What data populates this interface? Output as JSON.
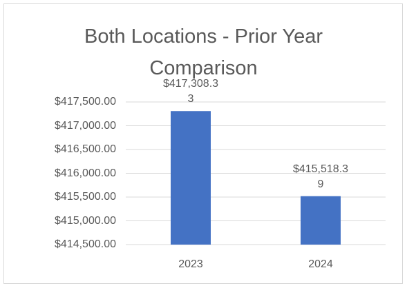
{
  "chart_data": {
    "type": "bar",
    "title": "Both Locations - Prior Year Comparison",
    "categories": [
      "2023",
      "2024"
    ],
    "values": [
      417308.33,
      415518.39
    ],
    "value_labels": [
      "$417,308.33",
      "$415,518.39"
    ],
    "color": "#4472c4",
    "ylim": [
      414500,
      417500
    ],
    "yticks": [
      {
        "value": 414500,
        "label": "$414,500.00"
      },
      {
        "value": 415000,
        "label": "$415,000.00"
      },
      {
        "value": 415500,
        "label": "$415,500.00"
      },
      {
        "value": 416000,
        "label": "$416,000.00"
      },
      {
        "value": 416500,
        "label": "$416,500.00"
      },
      {
        "value": 417000,
        "label": "$417,000.00"
      },
      {
        "value": 417500,
        "label": "$417,500.00"
      }
    ],
    "grid": true
  }
}
